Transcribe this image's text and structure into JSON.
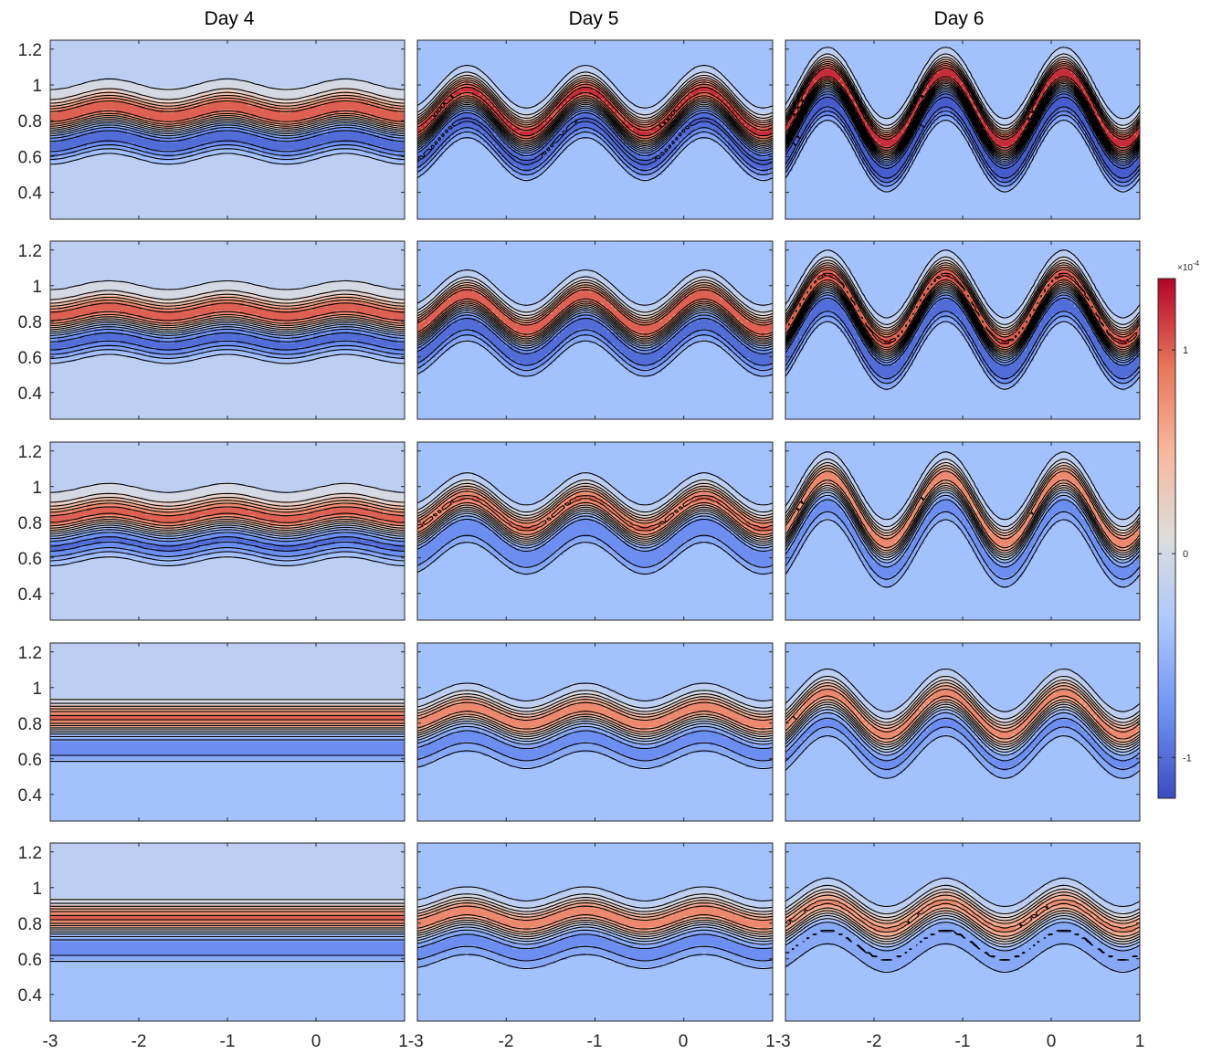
{
  "chart_data": {
    "type": "contour",
    "columns": [
      "Day 4",
      "Day 5",
      "Day 6"
    ],
    "rows": 5,
    "xlim": [
      -3,
      1
    ],
    "ylim": [
      0.25,
      1.25
    ],
    "xticks": [
      -3,
      -2,
      -1,
      0,
      1
    ],
    "xtick_labels": [
      "-3",
      "-2",
      "-1",
      "0",
      "1"
    ],
    "xtick_labels_shared": [
      "-3",
      "-2",
      "-1",
      "0",
      "1-3",
      "-2",
      "-1",
      "0",
      "1-3",
      "-2",
      "-1",
      "0",
      "1"
    ],
    "yticks": [
      0.4,
      0.6,
      0.8,
      1.0,
      1.2
    ],
    "ytick_labels": [
      "0.4",
      "0.6",
      "0.8",
      "1",
      "1.2"
    ],
    "colorbar": {
      "range": [
        -1.2,
        1.35
      ],
      "ticks": [
        -1,
        0,
        1
      ],
      "tick_labels": [
        "-1",
        "0",
        "1"
      ],
      "exponent_label": "×10",
      "exponent_power": "-4",
      "colors": [
        "#3b4cc0",
        "#6f92f3",
        "#aac7fd",
        "#dddddd",
        "#f7b89c",
        "#e7745b",
        "#b40426"
      ]
    },
    "panels": [
      [
        {
          "jet_center": 0.78,
          "amp": 1.1,
          "wave_amp": 0.03,
          "waves": 3,
          "phase": 0.0,
          "bg": -0.12
        },
        {
          "jet_center": 0.78,
          "amp": 1.05,
          "wave_amp": 0.025,
          "waves": 3,
          "phase": 0.0,
          "bg": -0.12
        },
        {
          "jet_center": 0.77,
          "amp": 1.0,
          "wave_amp": 0.025,
          "waves": 3,
          "phase": 0.0,
          "bg": -0.12
        },
        {
          "jet_center": 0.76,
          "amp": 0.95,
          "wave_amp": 0.0,
          "waves": 3,
          "phase": 0.0,
          "bg": -0.3
        },
        {
          "jet_center": 0.76,
          "amp": 0.95,
          "wave_amp": 0.0,
          "waves": 3,
          "phase": 0.0,
          "bg": -0.3
        }
      ],
      [
        {
          "jet_center": 0.78,
          "amp": 1.2,
          "wave_amp": 0.12,
          "waves": 3,
          "phase": 0.5,
          "bg": -0.35
        },
        {
          "jet_center": 0.78,
          "amp": 1.1,
          "wave_amp": 0.1,
          "waves": 3,
          "phase": 0.5,
          "bg": -0.35
        },
        {
          "jet_center": 0.78,
          "amp": 0.95,
          "wave_amp": 0.09,
          "waves": 3,
          "phase": 0.5,
          "bg": -0.35
        },
        {
          "jet_center": 0.77,
          "amp": 0.85,
          "wave_amp": 0.05,
          "waves": 3,
          "phase": 0.5,
          "bg": -0.35
        },
        {
          "jet_center": 0.76,
          "amp": 0.85,
          "wave_amp": 0.04,
          "waves": 3,
          "phase": 0.5,
          "bg": -0.35
        }
      ],
      [
        {
          "jet_center": 0.8,
          "amp": 1.3,
          "wave_amp": 0.2,
          "waves": 3,
          "phase": 0.9,
          "bg": -0.35
        },
        {
          "jet_center": 0.8,
          "amp": 1.15,
          "wave_amp": 0.19,
          "waves": 3,
          "phase": 0.9,
          "bg": -0.35
        },
        {
          "jet_center": 0.8,
          "amp": 0.85,
          "wave_amp": 0.19,
          "waves": 3,
          "phase": 0.9,
          "bg": -0.35
        },
        {
          "jet_center": 0.78,
          "amp": 0.8,
          "wave_amp": 0.12,
          "waves": 3,
          "phase": 0.9,
          "bg": -0.35
        },
        {
          "jet_center": 0.77,
          "amp": 0.75,
          "wave_amp": 0.08,
          "waves": 3,
          "phase": 0.9,
          "bg": -0.35
        }
      ]
    ]
  }
}
